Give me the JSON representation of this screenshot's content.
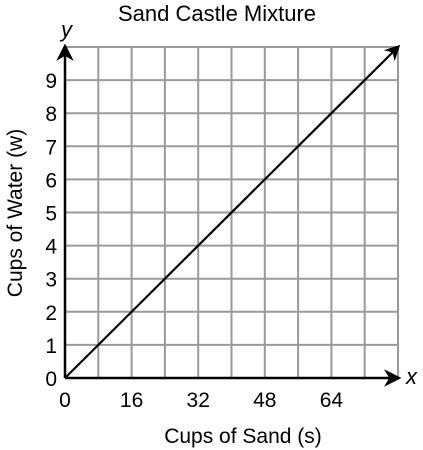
{
  "chart_data": {
    "type": "line",
    "title": "Sand Castle Mixture",
    "xlabel": "Cups of Sand (s)",
    "ylabel": "Cups of Water (w)",
    "x_axis_letter": "x",
    "y_axis_letter": "y",
    "xlim": [
      0,
      80
    ],
    "ylim": [
      0,
      10
    ],
    "x_grid_step": 8,
    "y_grid_step": 1,
    "x_ticks": [
      0,
      16,
      32,
      48,
      64
    ],
    "y_ticks": [
      0,
      1,
      2,
      3,
      4,
      5,
      6,
      7,
      8,
      9
    ],
    "grid": true,
    "arrows": true,
    "series": [
      {
        "x": [
          0,
          80
        ],
        "y": [
          0,
          10
        ]
      }
    ]
  }
}
